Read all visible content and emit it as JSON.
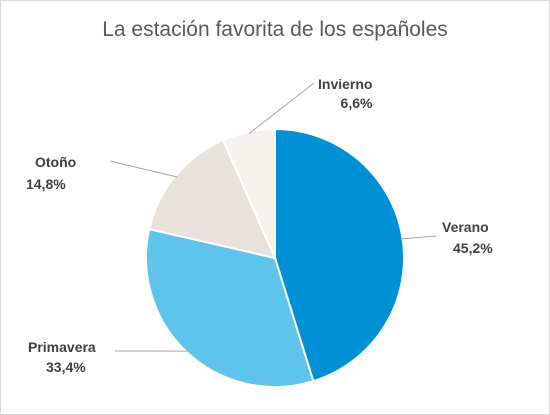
{
  "chart_data": {
    "type": "pie",
    "title": "La estación favorita de los españoles",
    "categories": [
      "Verano",
      "Primavera",
      "Otoño",
      "Invierno"
    ],
    "values": [
      45.2,
      33.4,
      14.8,
      6.6
    ],
    "value_labels": [
      "45,2%",
      "33,4%",
      "14,8%",
      "6,6%"
    ],
    "colors": [
      "#0090d5",
      "#5ec4ec",
      "#e8e2dc",
      "#f5f2ee"
    ],
    "start_angle": "12 o'clock",
    "direction": "clockwise",
    "legend": "none",
    "labels": "outside with leader lines"
  }
}
